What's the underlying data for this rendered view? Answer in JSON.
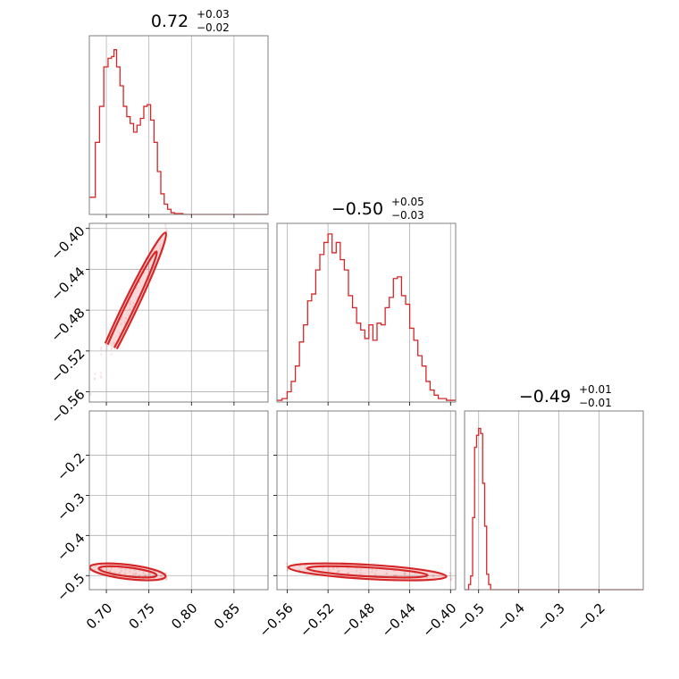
{
  "chart_data": {
    "type": "corner",
    "color": "#d62728",
    "parameters": [
      {
        "title": {
          "median": "0.72",
          "plus": "+0.03",
          "minus": "−0.02"
        },
        "range": [
          0.68,
          0.89
        ],
        "ticks": [
          0.7,
          0.75,
          0.8,
          0.85
        ],
        "tick_labels": [
          "0.70",
          "0.75",
          "0.80",
          "0.85"
        ],
        "hist": [
          {
            "x": 0.68,
            "y": 0.1
          },
          {
            "x": 0.687,
            "y": 0.42
          },
          {
            "x": 0.692,
            "y": 0.63
          },
          {
            "x": 0.697,
            "y": 0.86
          },
          {
            "x": 0.702,
            "y": 0.91
          },
          {
            "x": 0.706,
            "y": 0.92
          },
          {
            "x": 0.709,
            "y": 0.96
          },
          {
            "x": 0.712,
            "y": 0.86
          },
          {
            "x": 0.716,
            "y": 0.75
          },
          {
            "x": 0.72,
            "y": 0.63
          },
          {
            "x": 0.724,
            "y": 0.57
          },
          {
            "x": 0.728,
            "y": 0.53
          },
          {
            "x": 0.732,
            "y": 0.48
          },
          {
            "x": 0.736,
            "y": 0.52
          },
          {
            "x": 0.74,
            "y": 0.56
          },
          {
            "x": 0.744,
            "y": 0.63
          },
          {
            "x": 0.748,
            "y": 0.64
          },
          {
            "x": 0.752,
            "y": 0.55
          },
          {
            "x": 0.756,
            "y": 0.42
          },
          {
            "x": 0.76,
            "y": 0.25
          },
          {
            "x": 0.764,
            "y": 0.12
          },
          {
            "x": 0.768,
            "y": 0.06
          },
          {
            "x": 0.772,
            "y": 0.03
          },
          {
            "x": 0.776,
            "y": 0.01
          },
          {
            "x": 0.78,
            "y": 0.005
          },
          {
            "x": 0.79,
            "y": 0.0
          }
        ]
      },
      {
        "title": {
          "median": "−0.50",
          "plus": "+0.05",
          "minus": "−0.03"
        },
        "range": [
          -0.57,
          -0.395
        ],
        "ticks": [
          -0.56,
          -0.52,
          -0.48,
          -0.44,
          -0.4
        ],
        "tick_labels": [
          "−0.56",
          "−0.52",
          "−0.48",
          "−0.44",
          "−0.40"
        ],
        "hist": [
          {
            "x": -0.57,
            "y": 0.01
          },
          {
            "x": -0.565,
            "y": 0.02
          },
          {
            "x": -0.56,
            "y": 0.06
          },
          {
            "x": -0.556,
            "y": 0.12
          },
          {
            "x": -0.552,
            "y": 0.21
          },
          {
            "x": -0.548,
            "y": 0.35
          },
          {
            "x": -0.544,
            "y": 0.45
          },
          {
            "x": -0.54,
            "y": 0.59
          },
          {
            "x": -0.536,
            "y": 0.63
          },
          {
            "x": -0.532,
            "y": 0.77
          },
          {
            "x": -0.528,
            "y": 0.86
          },
          {
            "x": -0.524,
            "y": 0.93
          },
          {
            "x": -0.52,
            "y": 0.98
          },
          {
            "x": -0.516,
            "y": 0.87
          },
          {
            "x": -0.512,
            "y": 0.93
          },
          {
            "x": -0.508,
            "y": 0.83
          },
          {
            "x": -0.504,
            "y": 0.77
          },
          {
            "x": -0.5,
            "y": 0.62
          },
          {
            "x": -0.496,
            "y": 0.55
          },
          {
            "x": -0.492,
            "y": 0.46
          },
          {
            "x": -0.488,
            "y": 0.42
          },
          {
            "x": -0.484,
            "y": 0.37
          },
          {
            "x": -0.48,
            "y": 0.45
          },
          {
            "x": -0.476,
            "y": 0.36
          },
          {
            "x": -0.472,
            "y": 0.46
          },
          {
            "x": -0.468,
            "y": 0.45
          },
          {
            "x": -0.464,
            "y": 0.55
          },
          {
            "x": -0.46,
            "y": 0.61
          },
          {
            "x": -0.456,
            "y": 0.72
          },
          {
            "x": -0.452,
            "y": 0.73
          },
          {
            "x": -0.448,
            "y": 0.62
          },
          {
            "x": -0.444,
            "y": 0.57
          },
          {
            "x": -0.44,
            "y": 0.43
          },
          {
            "x": -0.436,
            "y": 0.36
          },
          {
            "x": -0.432,
            "y": 0.27
          },
          {
            "x": -0.428,
            "y": 0.21
          },
          {
            "x": -0.424,
            "y": 0.12
          },
          {
            "x": -0.42,
            "y": 0.07
          },
          {
            "x": -0.416,
            "y": 0.04
          },
          {
            "x": -0.412,
            "y": 0.02
          },
          {
            "x": -0.408,
            "y": 0.02
          },
          {
            "x": -0.404,
            "y": 0.01
          }
        ]
      },
      {
        "title": {
          "median": "−0.49",
          "plus": "+0.01",
          "minus": "−0.01"
        },
        "range": [
          -0.535,
          -0.09
        ],
        "ticks": [
          -0.5,
          -0.4,
          -0.3,
          -0.2
        ],
        "tick_labels": [
          "−0.5",
          "−0.4",
          "−0.3",
          "−0.2"
        ],
        "hist": [
          {
            "x": -0.535,
            "y": 0.0
          },
          {
            "x": -0.525,
            "y": 0.03
          },
          {
            "x": -0.52,
            "y": 0.08
          },
          {
            "x": -0.515,
            "y": 0.42
          },
          {
            "x": -0.51,
            "y": 0.83
          },
          {
            "x": -0.505,
            "y": 0.9
          },
          {
            "x": -0.5,
            "y": 0.94
          },
          {
            "x": -0.495,
            "y": 0.91
          },
          {
            "x": -0.49,
            "y": 0.62
          },
          {
            "x": -0.485,
            "y": 0.37
          },
          {
            "x": -0.48,
            "y": 0.09
          },
          {
            "x": -0.475,
            "y": 0.03
          },
          {
            "x": -0.47,
            "y": 0.0
          }
        ]
      }
    ],
    "scatter_samples": [
      [
        0.68,
        -0.56,
        -0.478
      ],
      [
        0.69,
        -0.545,
        -0.482
      ],
      [
        0.7,
        -0.52,
        -0.486
      ],
      [
        0.71,
        -0.505,
        -0.488
      ],
      [
        0.72,
        -0.49,
        -0.49
      ],
      [
        0.73,
        -0.475,
        -0.492
      ],
      [
        0.74,
        -0.458,
        -0.494
      ],
      [
        0.75,
        -0.44,
        -0.497
      ],
      [
        0.76,
        -0.42,
        -0.5
      ],
      [
        0.77,
        -0.4,
        -0.502
      ],
      [
        0.705,
        -0.515,
        -0.484
      ],
      [
        0.745,
        -0.45,
        -0.495
      ]
    ]
  }
}
